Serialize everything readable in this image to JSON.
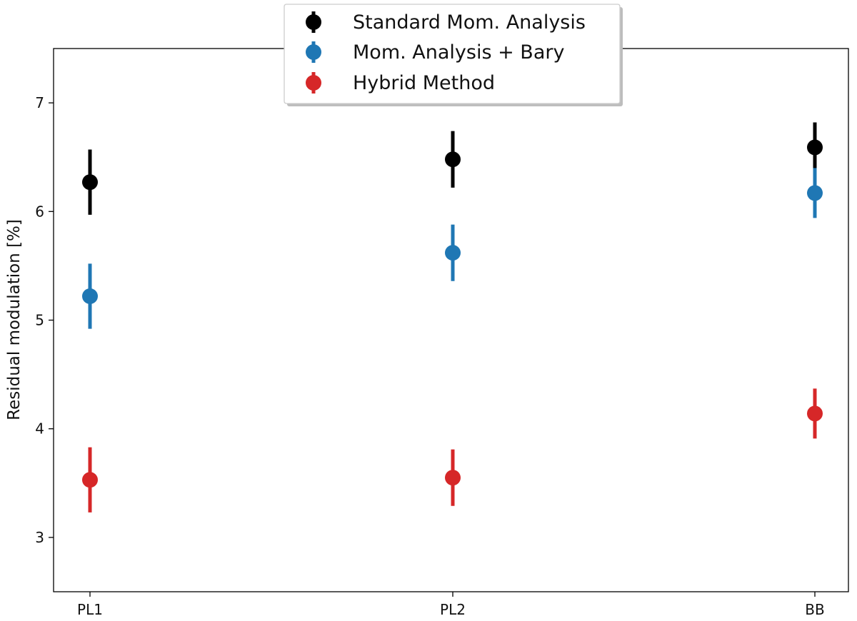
{
  "chart_data": {
    "type": "scatter",
    "categories": [
      "PL1",
      "PL2",
      "BB"
    ],
    "ylabel": "Residual modulation [%]",
    "xlabel": "",
    "title": "",
    "ylim": [
      2.5,
      7.5
    ],
    "yticks": [
      3,
      4,
      5,
      6,
      7
    ],
    "grid": false,
    "legend_position": "top-center",
    "series": [
      {
        "name": "Standard Mom. Analysis",
        "color": "#000000",
        "values": [
          6.27,
          6.48,
          6.59
        ],
        "errors": [
          0.3,
          0.26,
          0.23
        ]
      },
      {
        "name": "Mom. Analysis + Bary",
        "color": "#1f77b4",
        "values": [
          5.22,
          5.62,
          6.17
        ],
        "errors": [
          0.3,
          0.26,
          0.23
        ]
      },
      {
        "name": "Hybrid Method",
        "color": "#d62728",
        "values": [
          3.53,
          3.55,
          4.14
        ],
        "errors": [
          0.3,
          0.26,
          0.23
        ]
      }
    ]
  }
}
